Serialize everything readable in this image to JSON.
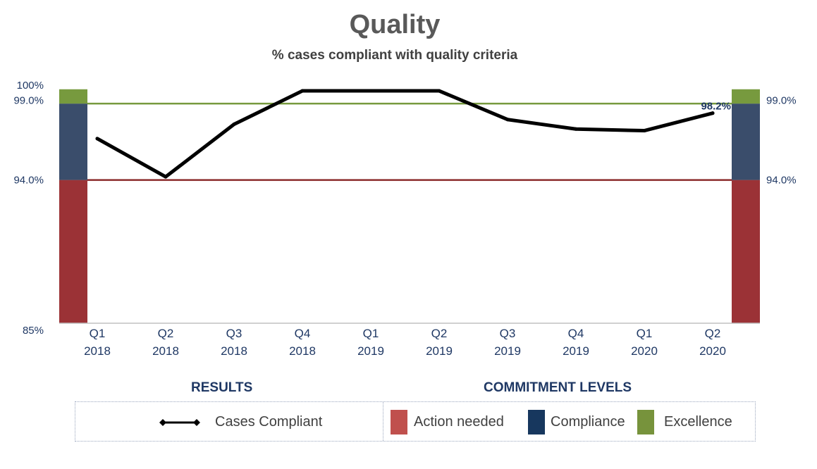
{
  "header": {
    "title": "Quality",
    "subtitle": "% cases compliant with quality criteria"
  },
  "chart_data": {
    "type": "line",
    "title": "Quality",
    "subtitle": "% cases compliant with quality criteria",
    "categories": [
      [
        "Q1",
        "2018"
      ],
      [
        "Q2",
        "2018"
      ],
      [
        "Q3",
        "2018"
      ],
      [
        "Q4",
        "2018"
      ],
      [
        "Q1",
        "2019"
      ],
      [
        "Q2",
        "2019"
      ],
      [
        "Q3",
        "2019"
      ],
      [
        "Q4",
        "2019"
      ],
      [
        "Q1",
        "2020"
      ],
      [
        "Q2",
        "2020"
      ]
    ],
    "series": [
      {
        "name": "Cases Compliant",
        "color": "#000000",
        "values": [
          96.6,
          94.2,
          97.5,
          99.6,
          99.6,
          99.6,
          97.8,
          97.2,
          97.1,
          98.2
        ]
      }
    ],
    "data_labels": [
      {
        "index": 9,
        "text": "98.2%"
      }
    ],
    "ylim": [
      85,
      100
    ],
    "left_axis_ticks": [
      {
        "value": 100,
        "label": "100%"
      },
      {
        "value": 99,
        "label": "99.0%"
      },
      {
        "value": 94,
        "label": "94.0%"
      },
      {
        "value": 85,
        "label": "85%"
      }
    ],
    "right_axis_ticks": [
      {
        "value": 99,
        "label": "99.0%"
      },
      {
        "value": 94,
        "label": "94.0%"
      }
    ],
    "commitment_bands": [
      {
        "name": "Action needed",
        "from": 85,
        "to": 94,
        "color": "#9b3236"
      },
      {
        "name": "Compliance",
        "from": 94,
        "to": 98.8,
        "color": "#3a4d6b"
      },
      {
        "name": "Excellence",
        "from": 98.8,
        "to": 99.7,
        "color": "#779a3e"
      }
    ],
    "threshold_lines": [
      {
        "value": 94,
        "color": "#8b2c2c"
      },
      {
        "value": 98.8,
        "color": "#779a3e"
      }
    ],
    "grid": false
  },
  "legend": {
    "results_heading": "RESULTS",
    "commitment_heading": "COMMITMENT LEVELS",
    "cases_compliant": "Cases Compliant",
    "action_needed": {
      "label": "Action needed",
      "color": "#c0504d"
    },
    "compliance": {
      "label": "Compliance",
      "color": "#17375e"
    },
    "excellence": {
      "label": "Excellence",
      "color": "#77933c"
    }
  }
}
